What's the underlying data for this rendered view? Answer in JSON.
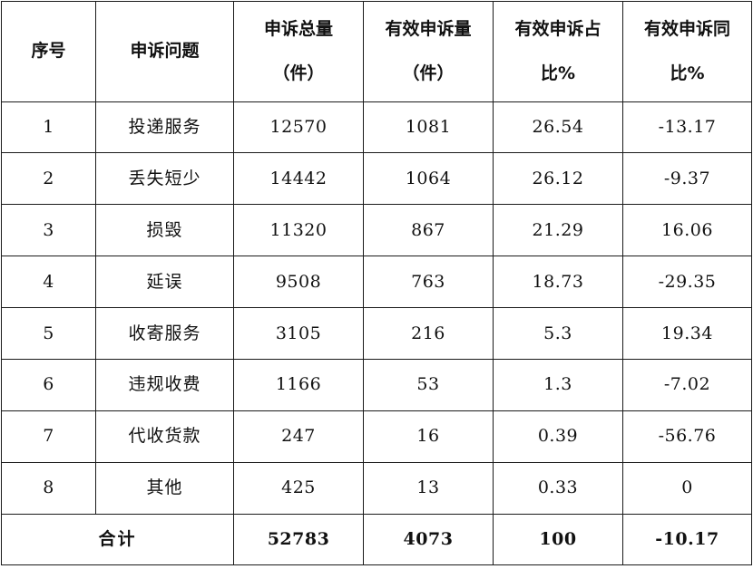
{
  "table": {
    "headers": [
      {
        "line1": "序号",
        "line2": ""
      },
      {
        "line1": "申诉问题",
        "line2": ""
      },
      {
        "line1": "申诉总量",
        "line2": "（件）"
      },
      {
        "line1": "有效申诉量",
        "line2": "（件）"
      },
      {
        "line1": "有效申诉占",
        "line2": "比%"
      },
      {
        "line1": "有效申诉同",
        "line2": "比%"
      }
    ],
    "rows": [
      {
        "no": "1",
        "issue": "投递服务",
        "total": "12570",
        "valid": "1081",
        "share": "26.54",
        "yoy": "-13.17"
      },
      {
        "no": "2",
        "issue": "丢失短少",
        "total": "14442",
        "valid": "1064",
        "share": "26.12",
        "yoy": "-9.37"
      },
      {
        "no": "3",
        "issue": "损毁",
        "total": "11320",
        "valid": "867",
        "share": "21.29",
        "yoy": "16.06"
      },
      {
        "no": "4",
        "issue": "延误",
        "total": "9508",
        "valid": "763",
        "share": "18.73",
        "yoy": "-29.35"
      },
      {
        "no": "5",
        "issue": "收寄服务",
        "total": "3105",
        "valid": "216",
        "share": "5.3",
        "yoy": "19.34"
      },
      {
        "no": "6",
        "issue": "违规收费",
        "total": "1166",
        "valid": "53",
        "share": "1.3",
        "yoy": "-7.02"
      },
      {
        "no": "7",
        "issue": "代收货款",
        "total": "247",
        "valid": "16",
        "share": "0.39",
        "yoy": "-56.76"
      },
      {
        "no": "8",
        "issue": "其他",
        "total": "425",
        "valid": "13",
        "share": "0.33",
        "yoy": "0"
      }
    ],
    "total_row": {
      "label": "合计",
      "total": "52783",
      "valid": "4073",
      "share": "100",
      "yoy": "-10.17"
    }
  }
}
